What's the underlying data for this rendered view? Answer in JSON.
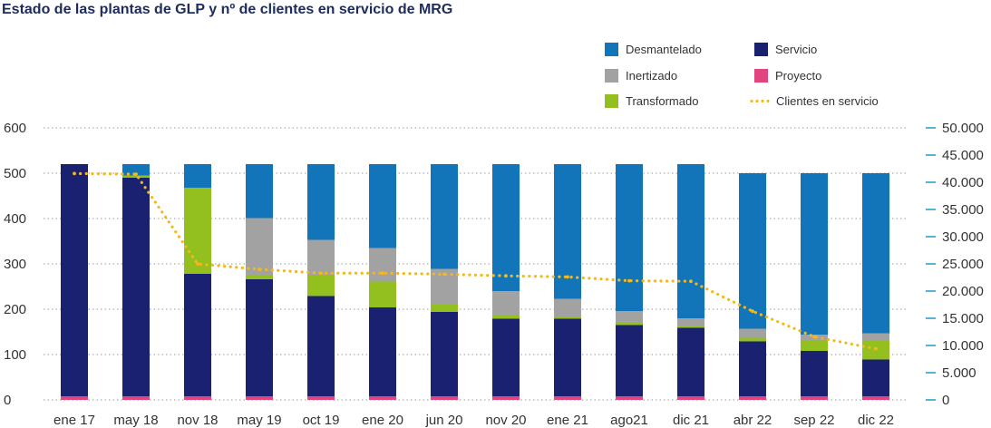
{
  "title": "Estado de las plantas de GLP y nº de clientes en servicio de MRG",
  "legend": [
    {
      "key": "desmantelado",
      "label": "Desmantelado",
      "color": "#1375b9",
      "kind": "swatch"
    },
    {
      "key": "servicio",
      "label": "Servicio",
      "color": "#1a2170",
      "kind": "swatch"
    },
    {
      "key": "inertizado",
      "label": "Inertizado",
      "color": "#a2a2a2",
      "kind": "swatch"
    },
    {
      "key": "proyecto",
      "label": "Proyecto",
      "color": "#e1457e",
      "kind": "swatch"
    },
    {
      "key": "transformado",
      "label": "Transformado",
      "color": "#93c01f",
      "kind": "swatch"
    },
    {
      "key": "clientes",
      "label": "Clientes en servicio",
      "color": "#f5b81a",
      "kind": "dots"
    }
  ],
  "chart_data": {
    "type": "bar",
    "stacked": true,
    "title": "Estado de las plantas de GLP y nº de clientes en servicio de MRG",
    "categories": [
      "ene 17",
      "may 18",
      "nov 18",
      "may 19",
      "oct 19",
      "ene 20",
      "jun 20",
      "nov 20",
      "ene 21",
      "ago21",
      "dic 21",
      "abr 22",
      "sep 22",
      "dic 22"
    ],
    "ylim": [
      0,
      600
    ],
    "yticks": [
      0,
      100,
      200,
      300,
      400,
      500,
      600
    ],
    "ytick_labels": [
      "0",
      "100",
      "200",
      "300",
      "400",
      "500",
      "600"
    ],
    "y2lim": [
      0,
      50000
    ],
    "y2ticks": [
      0,
      5000,
      10000,
      15000,
      20000,
      25000,
      30000,
      35000,
      40000,
      45000,
      50000
    ],
    "y2tick_labels": [
      "0",
      "5.000",
      "10.000",
      "15.000",
      "20.000",
      "25.000",
      "30.000",
      "35.000",
      "40.000",
      "45.000",
      "50.000"
    ],
    "series": [
      {
        "name": "Proyecto",
        "color": "#e1457e",
        "values": [
          8,
          8,
          8,
          8,
          8,
          8,
          8,
          8,
          8,
          8,
          8,
          8,
          8,
          8
        ]
      },
      {
        "name": "Servicio",
        "color": "#1a2170",
        "values": [
          512,
          482,
          270,
          258,
          221,
          196,
          186,
          171,
          171,
          157,
          151,
          121,
          100,
          81
        ]
      },
      {
        "name": "Transformado",
        "color": "#93c01f",
        "values": [
          0,
          5,
          190,
          10,
          45,
          57,
          17,
          7,
          5,
          5,
          5,
          8,
          23,
          41
        ]
      },
      {
        "name": "Inertizado",
        "color": "#a2a2a2",
        "values": [
          0,
          0,
          0,
          125,
          79,
          74,
          78,
          54,
          39,
          26,
          16,
          20,
          13,
          17
        ]
      },
      {
        "name": "Desmantelado",
        "color": "#1375b9",
        "values": [
          0,
          25,
          52,
          119,
          167,
          185,
          231,
          280,
          297,
          324,
          340,
          343,
          356,
          353
        ]
      }
    ],
    "line": {
      "name": "Clientes en servicio",
      "color": "#f5b81a",
      "axis": "right",
      "values": [
        41600,
        41500,
        25000,
        24000,
        23300,
        23300,
        23100,
        22800,
        22600,
        21900,
        21800,
        16300,
        11600,
        9400
      ]
    }
  }
}
